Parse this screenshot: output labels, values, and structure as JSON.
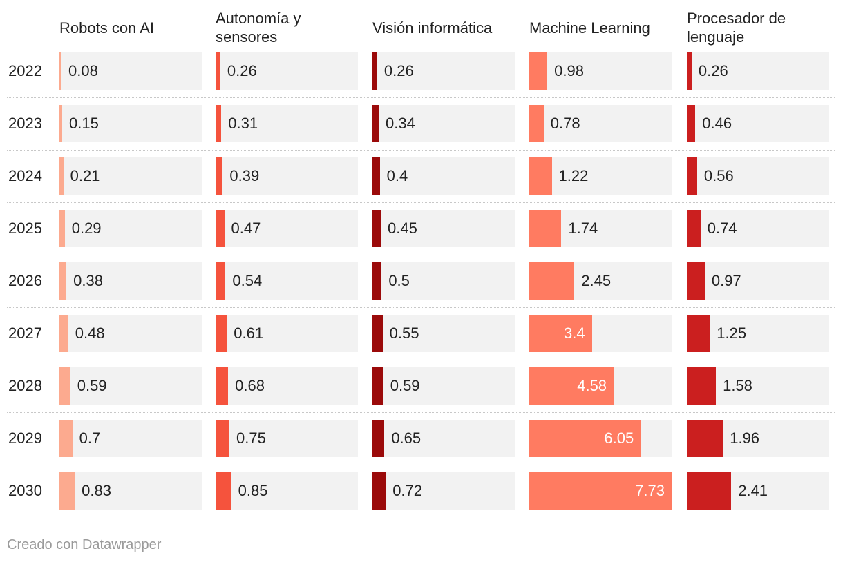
{
  "chart_data": {
    "type": "bar",
    "layout": "small-multiples",
    "categories": [
      "2022",
      "2023",
      "2024",
      "2025",
      "2026",
      "2027",
      "2028",
      "2029",
      "2030"
    ],
    "series": [
      {
        "name": "Robots con AI",
        "color": "#fcaa8f",
        "values": [
          0.08,
          0.15,
          0.21,
          0.29,
          0.38,
          0.48,
          0.59,
          0.7,
          0.83
        ],
        "labels": [
          "0.08",
          "0.15",
          "0.21",
          "0.29",
          "0.38",
          "0.48",
          "0.59",
          "0.7",
          "0.83"
        ]
      },
      {
        "name": "Autonomía y sensores",
        "color": "#f5533d",
        "values": [
          0.26,
          0.31,
          0.39,
          0.47,
          0.54,
          0.61,
          0.68,
          0.75,
          0.85
        ],
        "labels": [
          "0.26",
          "0.31",
          "0.39",
          "0.47",
          "0.54",
          "0.61",
          "0.68",
          "0.75",
          "0.85"
        ]
      },
      {
        "name": "Visión informática",
        "color": "#9b0a0a",
        "values": [
          0.26,
          0.34,
          0.4,
          0.45,
          0.5,
          0.55,
          0.59,
          0.65,
          0.72
        ],
        "labels": [
          "0.26",
          "0.34",
          "0.4",
          "0.45",
          "0.5",
          "0.55",
          "0.59",
          "0.65",
          "0.72"
        ]
      },
      {
        "name": "Machine Learning",
        "color": "#ff7b61",
        "values": [
          0.98,
          0.78,
          1.22,
          1.74,
          2.45,
          3.4,
          4.58,
          6.05,
          7.73
        ],
        "labels": [
          "0.98",
          "0.78",
          "1.22",
          "1.74",
          "2.45",
          "3.4",
          "4.58",
          "6.05",
          "7.73"
        ]
      },
      {
        "name": "Procesador de lenguaje",
        "color": "#cb1f1f",
        "values": [
          0.26,
          0.46,
          0.56,
          0.74,
          0.97,
          1.25,
          1.58,
          1.96,
          2.41
        ],
        "labels": [
          "0.26",
          "0.46",
          "0.56",
          "0.74",
          "0.97",
          "1.25",
          "1.58",
          "1.96",
          "2.41"
        ]
      }
    ],
    "xlim": [
      0,
      7.73
    ],
    "title": "",
    "grid": false
  },
  "footer": {
    "credit": "Creado con Datawrapper"
  }
}
